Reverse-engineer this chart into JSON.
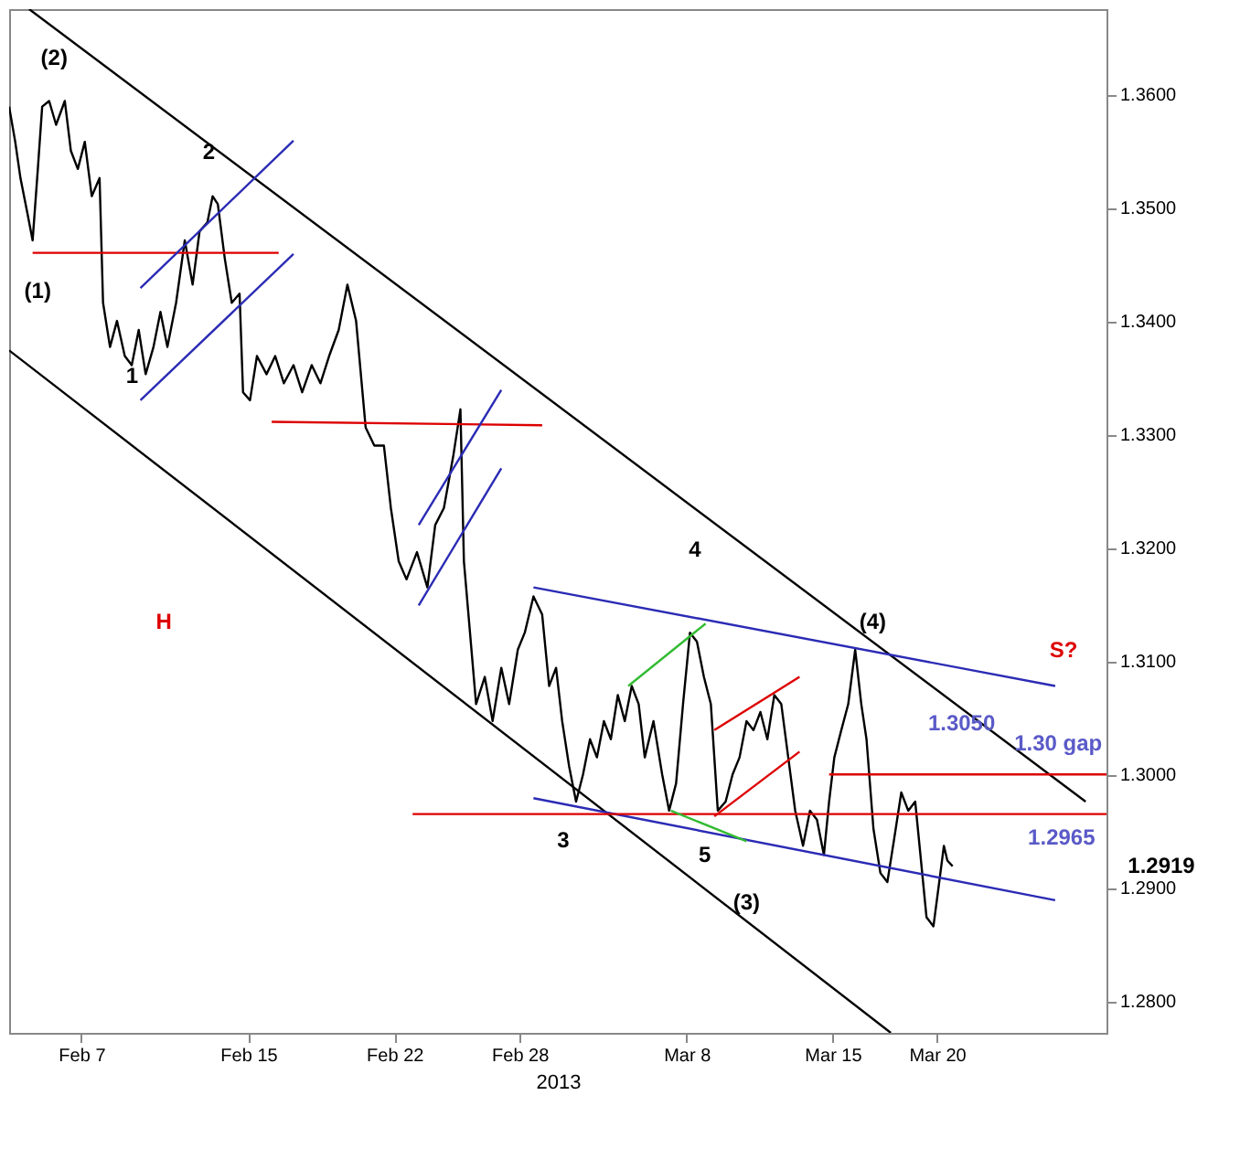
{
  "chart_data": {
    "type": "line",
    "xlabel": "2013",
    "xlim": [
      "2013-02-03T13:00",
      "2013-03-28T03:00"
    ],
    "ylim": [
      1.2772,
      1.3675
    ],
    "xticks": [
      {
        "value": "2013-02-07",
        "label": "Feb 7"
      },
      {
        "value": "2013-02-15",
        "label": "Feb 15"
      },
      {
        "value": "2013-02-22",
        "label": "Feb 22"
      },
      {
        "value": "2013-02-28",
        "label": "Feb 28"
      },
      {
        "value": "2013-03-08",
        "label": "Mar 8"
      },
      {
        "value": "2013-03-15",
        "label": "Mar 15"
      },
      {
        "value": "2013-03-20",
        "label": "Mar 20"
      }
    ],
    "yticks": [
      {
        "value": 1.28,
        "label": "1.2800"
      },
      {
        "value": 1.29,
        "label": "1.2900"
      },
      {
        "value": 1.3,
        "label": "1.3000"
      },
      {
        "value": 1.31,
        "label": "1.3100"
      },
      {
        "value": 1.32,
        "label": "1.3200"
      },
      {
        "value": 1.33,
        "label": "1.3300"
      },
      {
        "value": 1.34,
        "label": "1.3400"
      },
      {
        "value": 1.35,
        "label": "1.3500"
      },
      {
        "value": 1.36,
        "label": "1.3600"
      }
    ],
    "grid": false,
    "series": [
      {
        "color": "#000000",
        "x": [
          "2013-02-03T13:00",
          "2013-02-03T20:00",
          "2013-02-04T02:00",
          "2013-02-04T10:00",
          "2013-02-04T16:00",
          "2013-02-04T22:00",
          "2013-02-05T03:00",
          "2013-02-05T11:00",
          "2013-02-05T19:00",
          "2013-02-06T05:00",
          "2013-02-06T12:00",
          "2013-02-06T20:00",
          "2013-02-07T04:00",
          "2013-02-07T12:00",
          "2013-02-07T21:00",
          "2013-02-08T01:00",
          "2013-02-08T09:00",
          "2013-02-08T17:00",
          "2013-02-09T02:00",
          "2013-02-09T10:00",
          "2013-02-09T18:00",
          "2013-02-10T02:00",
          "2013-02-10T11:00",
          "2013-02-10T19:00",
          "2013-02-11T03:00",
          "2013-02-11T13:00",
          "2013-02-11T23:00",
          "2013-02-12T08:00",
          "2013-02-12T16:00",
          "2013-02-13T01:00",
          "2013-02-13T07:00",
          "2013-02-13T13:00",
          "2013-02-13T21:00",
          "2013-02-14T05:00",
          "2013-02-14T14:00",
          "2013-02-14T18:00",
          "2013-02-15T02:00",
          "2013-02-15T10:00",
          "2013-02-15T21:00",
          "2013-02-16T07:00",
          "2013-02-16T17:00",
          "2013-02-17T04:00",
          "2013-02-17T14:00",
          "2013-02-18T01:00",
          "2013-02-18T11:00",
          "2013-02-18T21:00",
          "2013-02-19T08:00",
          "2013-02-19T18:00",
          "2013-02-20T04:00",
          "2013-02-20T15:00",
          "2013-02-21T01:00",
          "2013-02-21T12:00",
          "2013-02-21T20:00",
          "2013-02-22T05:00",
          "2013-02-22T14:00",
          "2013-02-23T02:00",
          "2013-02-23T14:00",
          "2013-02-23T23:00",
          "2013-02-24T09:00",
          "2013-02-24T20:00",
          "2013-02-25T04:00",
          "2013-02-25T08:00",
          "2013-02-25T15:00",
          "2013-02-25T22:00",
          "2013-02-26T08:00",
          "2013-02-26T17:00",
          "2013-02-27T03:00",
          "2013-02-27T12:00",
          "2013-02-27T22:00",
          "2013-02-28T06:00",
          "2013-02-28T16:00",
          "2013-03-01T02:00",
          "2013-03-01T10:00",
          "2013-03-01T18:00",
          "2013-03-02T01:00",
          "2013-03-02T09:00",
          "2013-03-02T17:00",
          "2013-03-03T01:00",
          "2013-03-03T09:00",
          "2013-03-03T17:00",
          "2013-03-04T01:00",
          "2013-03-04T09:00",
          "2013-03-04T17:00",
          "2013-03-05T01:00",
          "2013-03-05T09:00",
          "2013-03-05T17:00",
          "2013-03-06T00:00",
          "2013-03-06T10:00",
          "2013-03-06T20:00",
          "2013-03-07T04:00",
          "2013-03-07T12:00",
          "2013-03-07T20:00",
          "2013-03-08T04:00",
          "2013-03-08T12:00",
          "2013-03-08T20:00",
          "2013-03-09T04:00",
          "2013-03-09T12:00",
          "2013-03-09T21:00",
          "2013-03-10T05:00",
          "2013-03-10T13:00",
          "2013-03-10T21:00",
          "2013-03-11T05:00",
          "2013-03-11T13:00",
          "2013-03-11T21:00",
          "2013-03-12T05:00",
          "2013-03-12T13:00",
          "2013-03-12T21:00",
          "2013-03-13T05:00",
          "2013-03-13T14:00",
          "2013-03-13T22:00",
          "2013-03-14T06:00",
          "2013-03-14T14:00",
          "2013-03-14T20:00",
          "2013-03-15T02:00",
          "2013-03-15T10:00",
          "2013-03-15T18:00",
          "2013-03-16T02:00",
          "2013-03-16T09:00",
          "2013-03-16T15:00",
          "2013-03-16T23:00",
          "2013-03-17T07:00",
          "2013-03-17T15:00",
          "2013-03-17T23:00",
          "2013-03-18T07:00",
          "2013-03-18T15:00",
          "2013-03-18T23:00",
          "2013-03-19T04:00",
          "2013-03-19T12:00",
          "2013-03-19T20:00",
          "2013-03-20T04:00",
          "2013-03-20T08:00",
          "2013-03-20T12:00",
          "2013-03-20T18:00"
        ],
        "values": [
          1.3589,
          1.3558,
          1.3526,
          1.3495,
          1.3471,
          1.3534,
          1.3589,
          1.3594,
          1.3573,
          1.3594,
          1.355,
          1.3534,
          1.3558,
          1.351,
          1.3526,
          1.3416,
          1.3377,
          1.34,
          1.3369,
          1.3361,
          1.3392,
          1.3353,
          1.3377,
          1.3408,
          1.3377,
          1.3416,
          1.3471,
          1.3432,
          1.3479,
          1.3487,
          1.351,
          1.3503,
          1.3455,
          1.3416,
          1.3424,
          1.3337,
          1.333,
          1.3369,
          1.3353,
          1.3369,
          1.3345,
          1.3361,
          1.3337,
          1.3361,
          1.3345,
          1.3369,
          1.3392,
          1.3432,
          1.34,
          1.3306,
          1.329,
          1.329,
          1.3235,
          1.3188,
          1.3172,
          1.3196,
          1.3165,
          1.322,
          1.3235,
          1.3282,
          1.3322,
          1.3188,
          1.3125,
          1.3062,
          1.3086,
          1.3047,
          1.3094,
          1.3062,
          1.311,
          1.3125,
          1.3157,
          1.3141,
          1.3078,
          1.3094,
          1.3047,
          1.3007,
          1.2976,
          1.3,
          1.3031,
          1.3015,
          1.3047,
          1.3031,
          1.307,
          1.3047,
          1.3078,
          1.3062,
          1.3015,
          1.3047,
          1.3,
          1.2968,
          1.2992,
          1.3062,
          1.3125,
          1.3117,
          1.3086,
          1.3062,
          1.2968,
          1.2976,
          1.3,
          1.3015,
          1.3047,
          1.3039,
          1.3055,
          1.3031,
          1.307,
          1.3062,
          1.3015,
          1.2968,
          1.2937,
          1.2968,
          1.296,
          1.2929,
          1.2976,
          1.3015,
          1.3039,
          1.3062,
          1.311,
          1.3062,
          1.3031,
          1.2952,
          1.2913,
          1.2905,
          1.2944,
          1.2984,
          1.2968,
          1.2976,
          1.2937,
          1.2874,
          1.2866,
          1.2913,
          1.2937,
          1.2924,
          1.2919
        ]
      },
      {
        "color": "#000000",
        "x": [
          "2013-02-04T12:00",
          "2013-03-27T03:00"
        ],
        "values": [
          1.3675,
          1.2976
        ]
      },
      {
        "color": "#000000",
        "x": [
          "2013-02-03T13:00",
          "2013-03-17T19:00"
        ],
        "values": [
          1.3374,
          1.2772
        ]
      },
      {
        "color": "#2b2bb5",
        "x": [
          "2013-02-28T16:00",
          "2013-03-25T16:00"
        ],
        "values": [
          1.3165,
          1.3078
        ]
      },
      {
        "color": "#2b2bb5",
        "x": [
          "2013-02-28T16:00",
          "2013-03-25T16:00"
        ],
        "values": [
          1.2979,
          1.2889
        ]
      },
      {
        "color": "#dd0000",
        "x": [
          "2013-02-22T21:00",
          "2013-03-28T03:00"
        ],
        "values": [
          1.2965,
          1.2965
        ]
      },
      {
        "color": "#dd0000",
        "x": [
          "2013-02-04T16:00",
          "2013-02-16T11:00"
        ],
        "values": [
          1.346,
          1.346
        ]
      },
      {
        "color": "#dd0000",
        "x": [
          "2013-02-16T03:00",
          "2013-03-01T02:00"
        ],
        "values": [
          1.3311,
          1.3308
        ]
      },
      {
        "color": "#dd0000",
        "x": [
          "2013-03-14T20:00",
          "2013-03-28T03:00"
        ],
        "values": [
          1.3,
          1.3
        ]
      },
      {
        "color": "#2b2bb5",
        "x": [
          "2013-02-09T20:00",
          "2013-02-17T04:00"
        ],
        "values": [
          1.333,
          1.3459
        ]
      },
      {
        "color": "#2b2bb5",
        "x": [
          "2013-02-09T20:00",
          "2013-02-17T04:00"
        ],
        "values": [
          1.3429,
          1.3559
        ]
      },
      {
        "color": "#2b2bb5",
        "x": [
          "2013-02-23T04:00",
          "2013-02-27T03:00"
        ],
        "values": [
          1.3149,
          1.327
        ]
      },
      {
        "color": "#2b2bb5",
        "x": [
          "2013-02-23T04:00",
          "2013-02-27T03:00"
        ],
        "values": [
          1.322,
          1.3339
        ]
      },
      {
        "color": "#dd0000",
        "x": [
          "2013-03-09T08:00",
          "2013-03-13T10:00"
        ],
        "values": [
          1.2963,
          1.302
        ]
      },
      {
        "color": "#dd0000",
        "x": [
          "2013-03-09T08:00",
          "2013-03-13T10:00"
        ],
        "values": [
          1.3039,
          1.3086
        ]
      },
      {
        "color": "#33bb33",
        "x": [
          "2013-03-05T05:00",
          "2013-03-08T22:00"
        ],
        "values": [
          1.3078,
          1.3133
        ]
      },
      {
        "color": "#33bb33",
        "x": [
          "2013-03-07T06:00",
          "2013-03-10T21:00"
        ],
        "values": [
          1.2968,
          1.2941
        ]
      }
    ],
    "annotations": [
      "(2)",
      "(1)",
      "2",
      "1",
      "4",
      "3",
      "5",
      "(3)",
      "(4)",
      "H",
      "S?",
      "1.3050",
      "1.30 gap",
      "1.2965",
      "1.2919"
    ]
  }
}
